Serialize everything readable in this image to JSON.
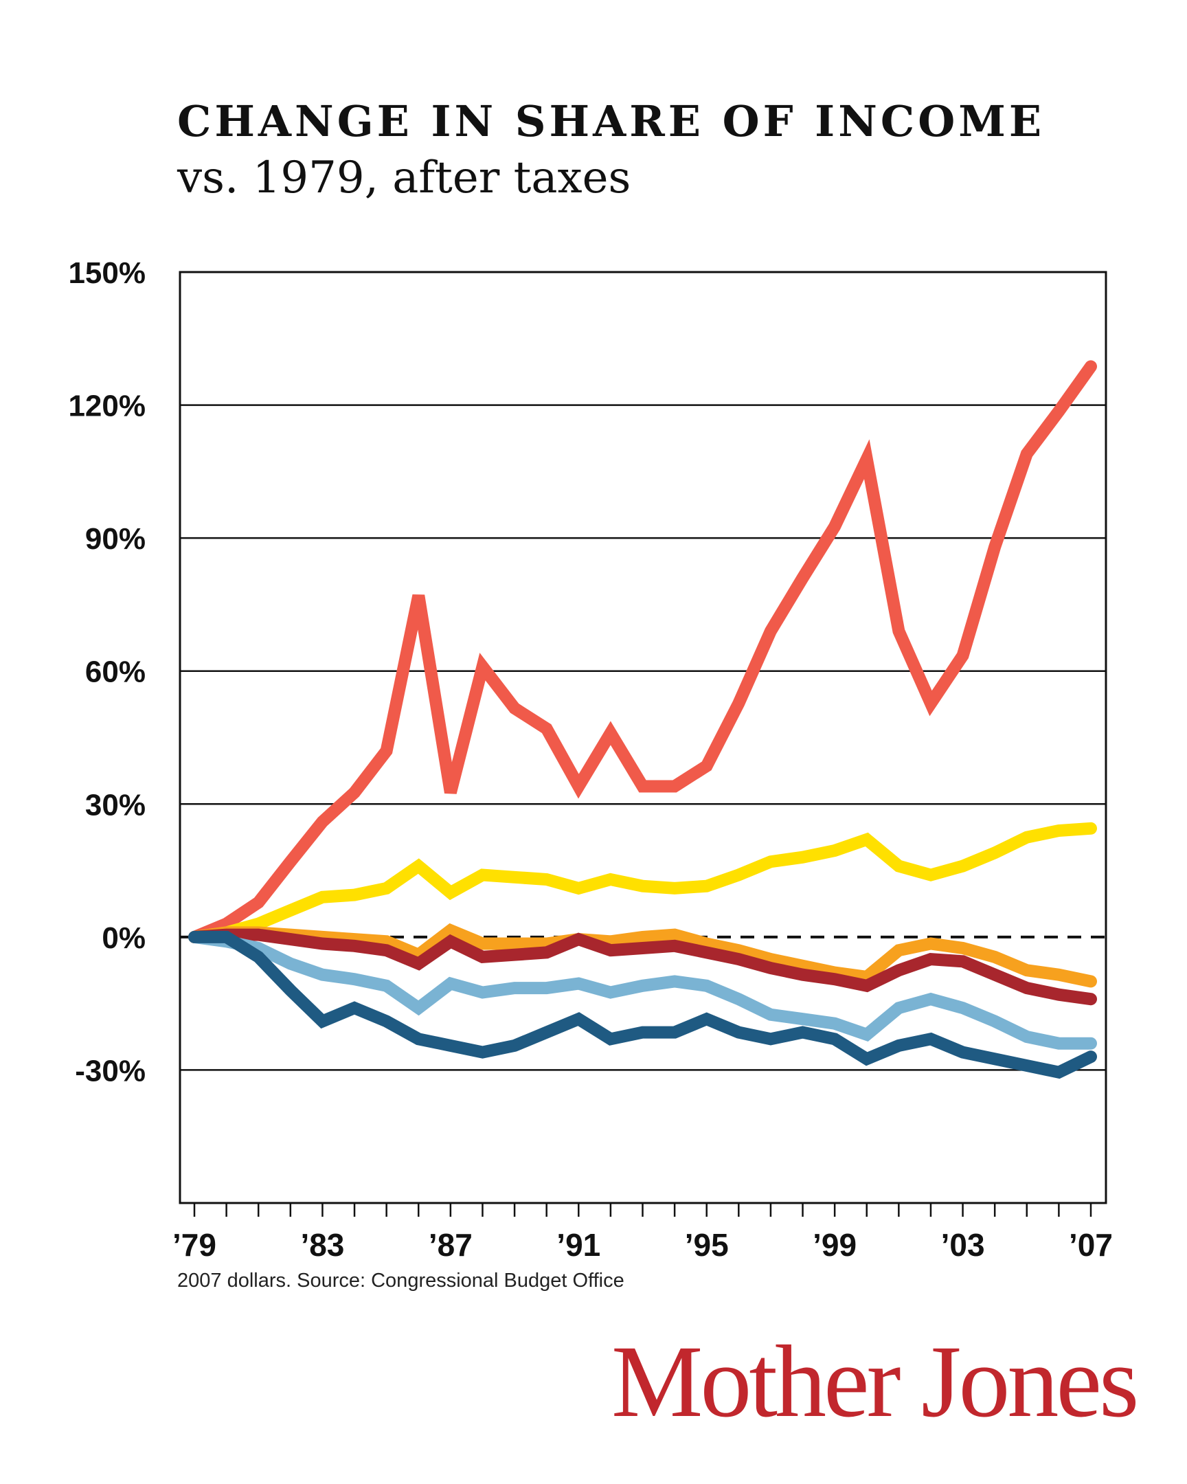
{
  "chart_data": {
    "type": "line",
    "title": "CHANGE IN SHARE OF INCOME",
    "subtitle": "vs. 1979, after taxes",
    "xlabel": "",
    "ylabel": "",
    "x": [
      1979,
      1980,
      1981,
      1982,
      1983,
      1984,
      1985,
      1986,
      1987,
      1988,
      1989,
      1990,
      1991,
      1992,
      1993,
      1994,
      1995,
      1996,
      1997,
      1998,
      1999,
      2000,
      2001,
      2002,
      2003,
      2004,
      2005,
      2006,
      2007
    ],
    "xlim": [
      1979,
      2007
    ],
    "ylim": [
      -60,
      150
    ],
    "x_tick_values": [
      1979,
      1983,
      1987,
      1991,
      1995,
      1999,
      2003,
      2007
    ],
    "x_tick_labels": [
      "’79",
      "’83",
      "’87",
      "’91",
      "’95",
      "’99",
      "’03",
      "’07"
    ],
    "y_tick_values": [
      150,
      120,
      90,
      60,
      30,
      0,
      -30
    ],
    "y_tick_labels": [
      "150%",
      "120%",
      "90%",
      "60%",
      "30%",
      "0%",
      "-30%"
    ],
    "grid": true,
    "zero_line": "dashed",
    "legend": "none",
    "series": [
      {
        "color": "#f05a4a",
        "values": [
          0,
          3,
          7.8,
          17,
          26,
          32.6,
          42,
          77,
          32.6,
          61,
          51.6,
          47,
          34,
          46,
          34,
          34,
          38.6,
          52.7,
          69,
          81,
          92.6,
          107.8,
          69,
          52.7,
          63.5,
          88,
          109,
          118.6,
          128.7
        ]
      },
      {
        "color": "#ffe000",
        "values": [
          0,
          1,
          3,
          6,
          9,
          9.5,
          11,
          16,
          10,
          14,
          13.5,
          13,
          11,
          13,
          11.5,
          11,
          11.5,
          14,
          17,
          18,
          19.5,
          22,
          16,
          14,
          16,
          19,
          22.5,
          24,
          24.5
        ]
      },
      {
        "color": "#f7a11e",
        "values": [
          0,
          1,
          1,
          0.5,
          0,
          -0.5,
          -1,
          -4,
          1.5,
          -1.5,
          -1.5,
          -1.5,
          -0.5,
          -1,
          0,
          0.5,
          -1.5,
          -3,
          -5,
          -6.5,
          -8,
          -9,
          -3,
          -1.5,
          -2.5,
          -4.5,
          -7.5,
          -8.5,
          -10
        ]
      },
      {
        "color": "#a8262d",
        "values": [
          0,
          0.5,
          0.5,
          -0.5,
          -1.5,
          -2,
          -3,
          -6,
          -1,
          -4.5,
          -4,
          -3.5,
          -0.5,
          -3,
          -2.5,
          -2,
          -3.5,
          -5,
          -7,
          -8.5,
          -9.5,
          -11,
          -7.5,
          -5,
          -5.5,
          -8.5,
          -11.5,
          -13,
          -14
        ]
      },
      {
        "color": "#7ab3d3",
        "values": [
          0,
          -1,
          -2.5,
          -6,
          -8.5,
          -9.5,
          -11,
          -16,
          -10.5,
          -12.5,
          -11.5,
          -11.5,
          -10.5,
          -12.5,
          -11,
          -10,
          -11,
          -14,
          -17.5,
          -18.5,
          -19.5,
          -22,
          -16,
          -14,
          -16,
          -19,
          -22.5,
          -24,
          -24
        ]
      },
      {
        "color": "#1f5a82",
        "values": [
          0,
          0,
          -4.5,
          -12,
          -19,
          -16,
          -19,
          -23,
          -24.5,
          -26,
          -24.5,
          -21.5,
          -18.5,
          -23,
          -21.5,
          -21.5,
          -18.5,
          -21.5,
          -23,
          -21.5,
          -23,
          -27.5,
          -24.5,
          -23,
          -26,
          -27.5,
          -29,
          -30.5,
          -27
        ]
      }
    ]
  },
  "footer": {
    "source": "2007 dollars. Source: Congressional Budget Office",
    "logo": "Mother Jones",
    "logo_color": "#c1272d"
  }
}
